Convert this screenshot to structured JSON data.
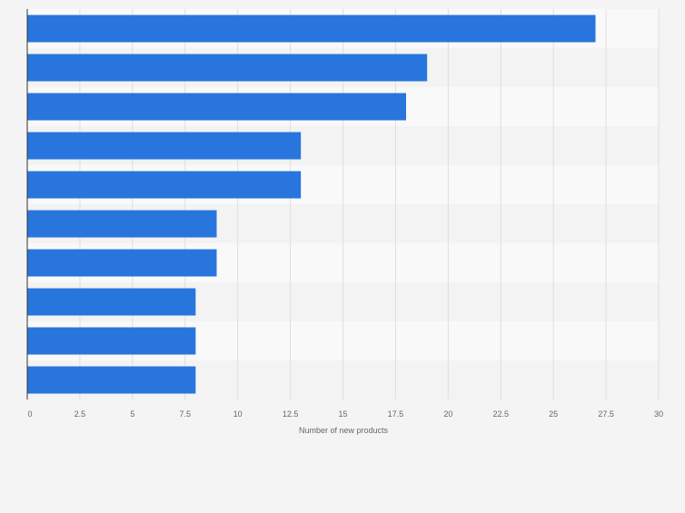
{
  "chart_data": {
    "type": "bar",
    "orientation": "horizontal",
    "categories": [
      "",
      "",
      "",
      "",
      "",
      "",
      "",
      "",
      "",
      ""
    ],
    "values": [
      27,
      19,
      18,
      13,
      13,
      9,
      9,
      8,
      8,
      8
    ],
    "title": "",
    "xlabel": "Number of new products",
    "ylabel": "",
    "xlim": [
      0,
      30
    ],
    "xticks": [
      0,
      2.5,
      5,
      7.5,
      10,
      12.5,
      15,
      17.5,
      20,
      22.5,
      25,
      27.5,
      30
    ],
    "xtick_labels": [
      "0",
      "2.5",
      "5",
      "7.5",
      "10",
      "12.5",
      "15",
      "17.5",
      "20",
      "22.5",
      "25",
      "27.5",
      "30"
    ],
    "grid": true,
    "legend": "none",
    "colors": {
      "bar": "#2876dd",
      "band_light": "#f9f9f9",
      "band_dark": "#f3f3f3",
      "grid": "#dedede",
      "axis": "#333333",
      "text": "#666666",
      "background": "#f4f4f4"
    }
  }
}
